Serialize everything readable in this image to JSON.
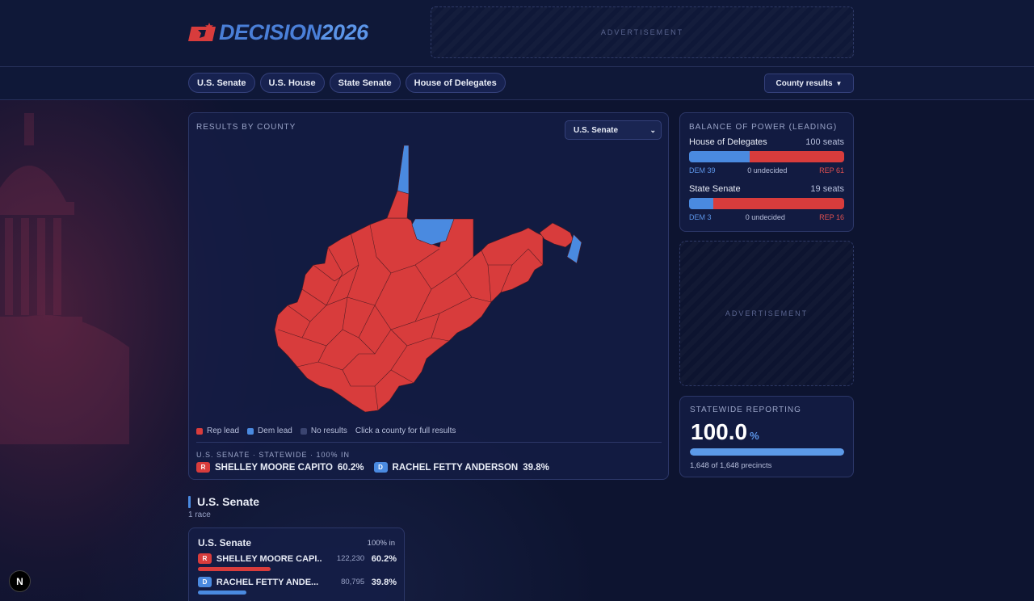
{
  "brand": {
    "word": "DECISION",
    "year": "2026"
  },
  "ads": {
    "label": "ADVERTISEMENT"
  },
  "nav": {
    "tabs": [
      "U.S. Senate",
      "U.S. House",
      "State Senate",
      "House of Delegates"
    ],
    "view_select": "County results"
  },
  "map_panel": {
    "title": "RESULTS BY COUNTY",
    "race_select": "U.S. Senate",
    "legend": [
      "Rep lead",
      "Dem lead",
      "No results"
    ],
    "hint": "Click a county for full results",
    "statewide_line": "U.S. SENATE · STATEWIDE · 100% IN",
    "candidates": [
      {
        "party": "R",
        "name": "SHELLEY MOORE CAPITO",
        "pct": "60.2%"
      },
      {
        "party": "D",
        "name": "RACHEL FETTY ANDERSON",
        "pct": "39.8%"
      }
    ],
    "colors": {
      "rep": "#d83c3c",
      "dem": "#4a8ae0",
      "none": "#3a4470"
    }
  },
  "balance": {
    "title": "BALANCE OF POWER (LEADING)",
    "chambers": [
      {
        "name": "House of Delegates",
        "seats": "100 seats",
        "dem_label": "DEM 39",
        "undecided": "0 undecided",
        "rep_label": "REP 61",
        "dem": 39,
        "rep": 61,
        "total": 100
      },
      {
        "name": "State Senate",
        "seats": "19 seats",
        "dem_label": "DEM 3",
        "undecided": "0 undecided",
        "rep_label": "REP 16",
        "dem": 3,
        "rep": 16,
        "total": 19
      }
    ]
  },
  "reporting": {
    "title": "STATEWIDE REPORTING",
    "value": "100.0",
    "unit": "%",
    "fraction": 1.0,
    "precincts": "1,648 of 1,648 precincts"
  },
  "section": {
    "title": "U.S. Senate",
    "count": "1 race"
  },
  "race_card": {
    "title": "U.S. Senate",
    "in": "100% in",
    "rows": [
      {
        "party": "R",
        "name": "SHELLEY MOORE CAPI...",
        "votes": "122,230",
        "pct": "60.2%",
        "share": 0.602
      },
      {
        "party": "D",
        "name": "RACHEL FETTY ANDE...",
        "votes": "80,795",
        "pct": "39.8%",
        "share": 0.398
      }
    ]
  },
  "dev_badge": "N"
}
